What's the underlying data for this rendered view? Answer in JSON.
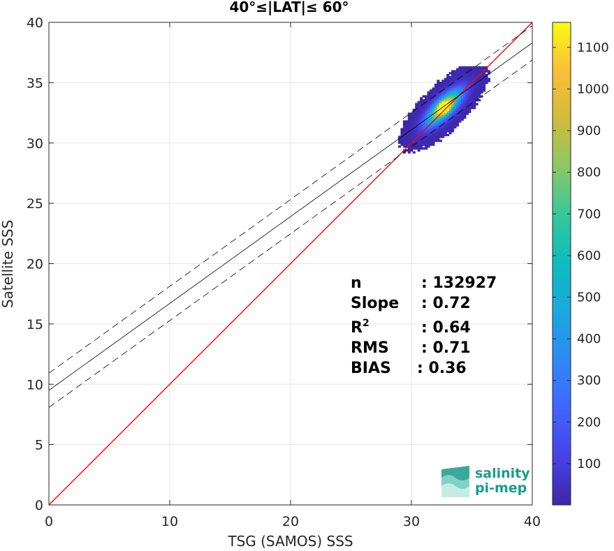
{
  "chart_data": {
    "type": "heatmap",
    "title": "40°≤|LAT|≤ 60°",
    "xlabel": "TSG (SAMOS) SSS",
    "ylabel": "Satellite SSS",
    "xlim": [
      0,
      40
    ],
    "ylim": [
      0,
      40
    ],
    "xticks": [
      0,
      10,
      20,
      30,
      40
    ],
    "yticks": [
      0,
      5,
      10,
      15,
      20,
      25,
      30,
      35,
      40
    ],
    "grid": true,
    "colorbar": {
      "range": [
        1,
        1160
      ],
      "ticks": [
        100,
        200,
        300,
        400,
        500,
        600,
        700,
        800,
        900,
        1000,
        1100
      ],
      "colormap": "parula"
    },
    "density_cluster": {
      "x_range": [
        26.5,
        36.5
      ],
      "y_range": [
        29.0,
        36.3
      ],
      "peak": [
        32.6,
        32.9
      ],
      "peak_count": 1160
    },
    "reference_line": {
      "name": "1:1",
      "color": "#ff0000",
      "x": [
        0,
        40
      ],
      "y": [
        0,
        40
      ]
    },
    "fit_line": {
      "color": "#000000",
      "intercept": 9.5,
      "slope": 0.72
    },
    "fit_bounds": {
      "color": "#000000",
      "dash": true,
      "offset": 1.42
    },
    "stats": [
      {
        "label": "n",
        "value": ": 132927"
      },
      {
        "label": "Slope",
        "value": ": 0.72"
      },
      {
        "label": "R",
        "sup": "2",
        "value": ": 0.64"
      },
      {
        "label": "RMS",
        "value": ": 0.71"
      },
      {
        "label": "BIAS",
        "value": ": 0.36"
      }
    ]
  },
  "logo": {
    "line1": "salinity",
    "line2": "pi-mep"
  }
}
